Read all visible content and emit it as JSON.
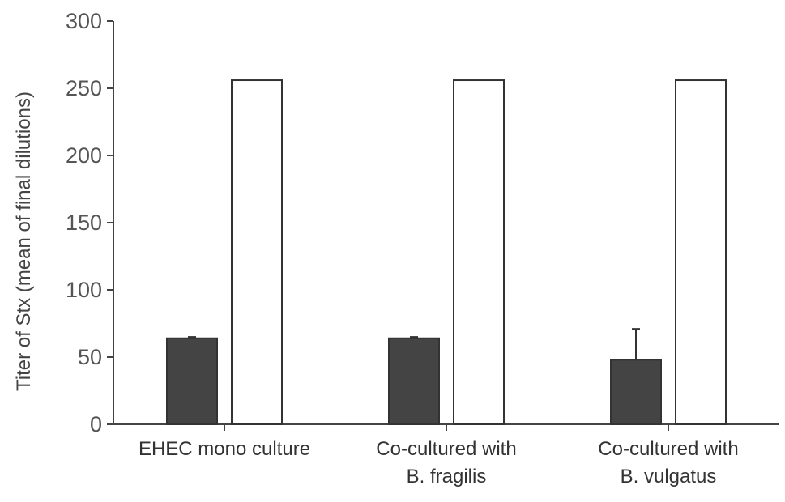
{
  "chart_data": {
    "type": "bar",
    "title": "",
    "xlabel": "",
    "ylabel": "Titer of Stx (mean of final dilutions)",
    "ylim": [
      0,
      300
    ],
    "yticks": [
      0,
      50,
      100,
      150,
      200,
      250,
      300
    ],
    "categories": [
      [
        "EHEC mono culture"
      ],
      [
        "Co-cultured with",
        "B. fragilis"
      ],
      [
        "Co-cultured with",
        "B. vulgatus"
      ]
    ],
    "series": [
      {
        "values": [
          64,
          64,
          48
        ],
        "error": [
          1,
          1,
          23
        ],
        "color": "#444444"
      },
      {
        "values": [
          256,
          256,
          256
        ],
        "error": [
          0,
          0,
          0
        ],
        "color": "#ffffff"
      }
    ],
    "grid": false,
    "legend": "none"
  }
}
